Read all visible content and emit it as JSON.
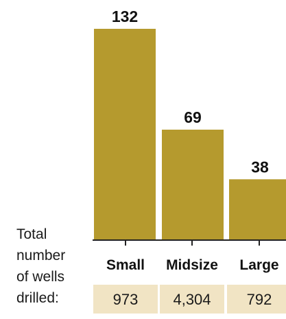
{
  "chart_data": {
    "type": "bar",
    "categories": [
      "Small",
      "Midsize",
      "Large"
    ],
    "values": [
      132,
      69,
      38
    ],
    "value_labels": [
      "132",
      "69",
      "38"
    ],
    "row_label": [
      "Total",
      "number",
      "of wells",
      "drilled:"
    ],
    "wells_drilled": [
      "973",
      "4,304",
      "792"
    ],
    "ylim": [
      0,
      132
    ],
    "grid": false,
    "colors": {
      "bar": "#b59a2e",
      "table_cell": "#f1e4c4",
      "axis": "#222222"
    }
  }
}
